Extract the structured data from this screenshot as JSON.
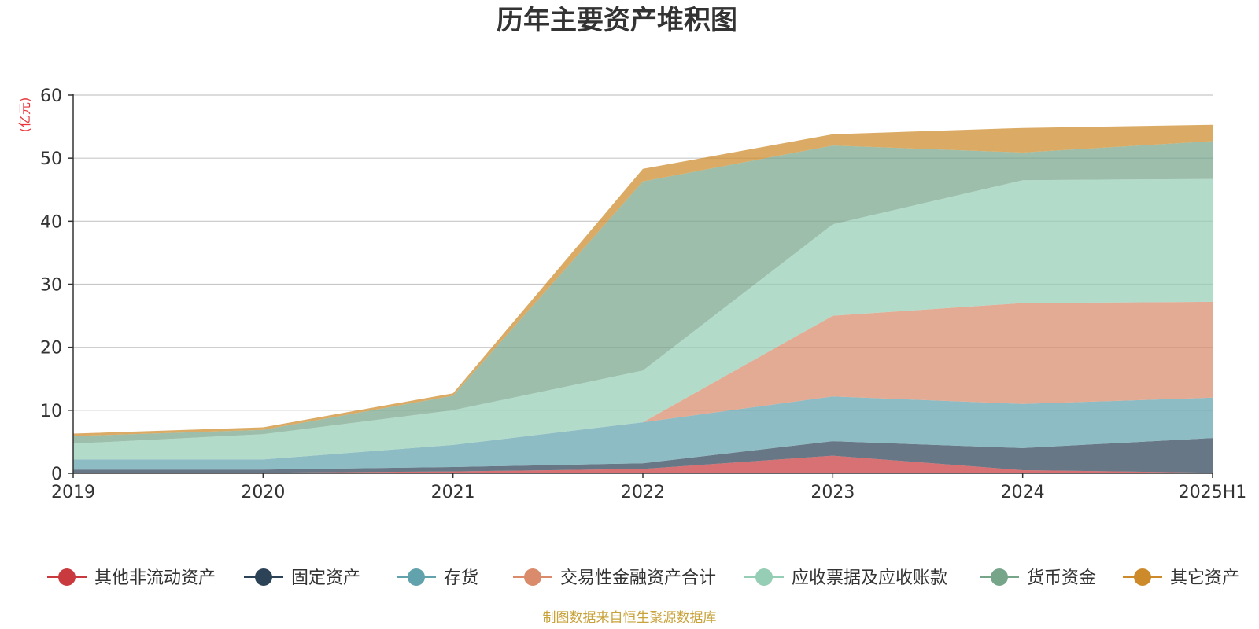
{
  "chart_data": {
    "type": "area",
    "stacked": true,
    "title": "历年主要资产堆积图",
    "unit_label": "(亿元)",
    "categories": [
      "2019",
      "2020",
      "2021",
      "2022",
      "2023",
      "2024",
      "2025H1"
    ],
    "ylim": [
      0,
      60
    ],
    "yticks": [
      "0",
      "10",
      "20",
      "30",
      "40",
      "50",
      "60"
    ],
    "grid": true,
    "legend_position": "bottom",
    "series": [
      {
        "name": "其他非流动资产",
        "color": "#c93a3e",
        "values": [
          0.1,
          0.1,
          0.3,
          0.7,
          2.8,
          0.5,
          0.1
        ]
      },
      {
        "name": "固定资产",
        "color": "#2c4256",
        "values": [
          0.5,
          0.5,
          0.7,
          0.9,
          2.3,
          3.5,
          5.5
        ]
      },
      {
        "name": "存货",
        "color": "#62a2ad",
        "values": [
          1.6,
          1.6,
          3.5,
          6.5,
          7.1,
          7.0,
          6.4
        ]
      },
      {
        "name": "交易性金融资产合计",
        "color": "#d98b6b",
        "values": [
          0.0,
          0.0,
          0.0,
          0.0,
          12.8,
          16.0,
          15.2
        ]
      },
      {
        "name": "应收票据及应收账款",
        "color": "#95cdb5",
        "values": [
          2.5,
          4.0,
          5.5,
          8.2,
          14.5,
          19.5,
          19.5
        ]
      },
      {
        "name": "货币资金",
        "color": "#76a58a",
        "values": [
          1.2,
          0.7,
          2.3,
          30.0,
          12.5,
          4.4,
          6.0
        ]
      },
      {
        "name": "其它资产",
        "color": "#cd8a2a",
        "values": [
          0.4,
          0.4,
          0.4,
          2.0,
          1.8,
          3.9,
          2.6
        ]
      }
    ],
    "source_note": "制图数据来自恒生聚源数据库"
  }
}
